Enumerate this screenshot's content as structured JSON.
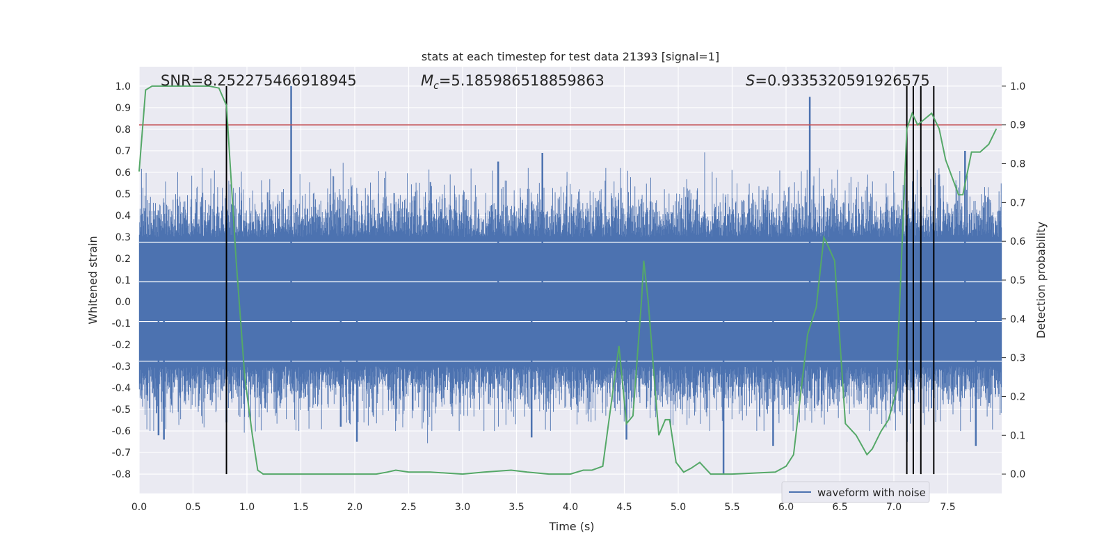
{
  "chart_data": {
    "type": "line",
    "title": "stats at each timestep for test data 21393 [signal=1]",
    "xlabel": "Time (s)",
    "ylabel": "Whitened strain",
    "y2label": "Detection probability",
    "xlim": [
      0.0,
      8.0
    ],
    "ylim": [
      -0.89,
      1.09
    ],
    "y2lim": [
      -0.05,
      1.05
    ],
    "xticks": [
      "0.0",
      "0.5",
      "1.0",
      "1.5",
      "2.0",
      "2.5",
      "3.0",
      "3.5",
      "4.0",
      "4.5",
      "5.0",
      "5.5",
      "6.0",
      "6.5",
      "7.0",
      "7.5"
    ],
    "yticks": [
      "-0.8",
      "-0.7",
      "-0.6",
      "-0.5",
      "-0.4",
      "-0.3",
      "-0.2",
      "-0.1",
      "0.0",
      "0.1",
      "0.2",
      "0.3",
      "0.4",
      "0.5",
      "0.6",
      "0.7",
      "0.8",
      "0.9",
      "1.0"
    ],
    "y2ticks": [
      "0.0",
      "0.1",
      "0.2",
      "0.3",
      "0.4",
      "0.5",
      "0.6",
      "0.7",
      "0.8",
      "0.9",
      "1.0"
    ],
    "grid": true,
    "legend_position": "lower-right",
    "stats": {
      "snr": "SNR=8.252275466918945",
      "mc_symbol": "M",
      "mc_sub": "c",
      "mc_value": "=5.185986518859863",
      "s_symbol": "S",
      "s_value": "=0.9335320591926575"
    },
    "threshold_line": {
      "axis": "y2",
      "value": 0.9,
      "color": "#c44e52"
    },
    "vertical_markers": {
      "x": [
        0.81,
        7.12,
        7.18,
        7.25,
        7.37
      ],
      "y_range": [
        -0.8,
        1.0
      ],
      "color": "#000000"
    },
    "series": [
      {
        "name": "waveform with noise",
        "axis": "y",
        "kind": "noise-waveform",
        "color": "#4c72b0",
        "envelope_amplitude": 0.3,
        "spikes": [
          {
            "x": 1.41,
            "y": 1.0
          },
          {
            "x": 1.41,
            "y": -0.3
          },
          {
            "x": 6.22,
            "y": 0.95
          },
          {
            "x": 3.74,
            "y": 0.69
          },
          {
            "x": 7.66,
            "y": 0.7
          },
          {
            "x": 3.33,
            "y": 0.65
          },
          {
            "x": 5.42,
            "y": -0.8
          },
          {
            "x": 0.81,
            "y": -0.56
          },
          {
            "x": 0.18,
            "y": -0.62
          },
          {
            "x": 0.23,
            "y": -0.64
          },
          {
            "x": 2.02,
            "y": -0.65
          },
          {
            "x": 5.88,
            "y": -0.67
          },
          {
            "x": 7.76,
            "y": -0.67
          },
          {
            "x": 4.52,
            "y": -0.64
          },
          {
            "x": 3.64,
            "y": -0.63
          },
          {
            "x": 1.87,
            "y": -0.58
          }
        ]
      },
      {
        "name": "",
        "axis": "y2",
        "kind": "line",
        "color": "#55a868",
        "x": [
          0.0,
          0.06,
          0.12,
          0.3,
          0.5,
          0.65,
          0.74,
          0.81,
          0.9,
          0.98,
          1.05,
          1.1,
          1.15,
          1.5,
          2.0,
          2.2,
          2.3,
          2.38,
          2.5,
          2.7,
          3.0,
          3.2,
          3.45,
          3.6,
          3.8,
          4.0,
          4.12,
          4.2,
          4.3,
          4.45,
          4.52,
          4.58,
          4.66,
          4.68,
          4.72,
          4.82,
          4.88,
          4.92,
          4.98,
          5.05,
          5.12,
          5.2,
          5.3,
          5.5,
          5.9,
          6.0,
          6.07,
          6.2,
          6.28,
          6.35,
          6.37,
          6.45,
          6.55,
          6.65,
          6.75,
          6.8,
          6.88,
          6.95,
          7.02,
          7.12,
          7.17,
          7.22,
          7.35,
          7.42,
          7.48,
          7.6,
          7.64,
          7.72,
          7.8,
          7.88,
          7.95
        ],
        "y": [
          0.78,
          0.99,
          1.0,
          1.0,
          1.0,
          1.0,
          0.995,
          0.95,
          0.55,
          0.25,
          0.1,
          0.01,
          0.0,
          0.0,
          0.0,
          0.0,
          0.005,
          0.01,
          0.005,
          0.005,
          0.0,
          0.005,
          0.01,
          0.005,
          0.0,
          0.0,
          0.01,
          0.01,
          0.02,
          0.33,
          0.13,
          0.15,
          0.45,
          0.55,
          0.45,
          0.1,
          0.14,
          0.14,
          0.03,
          0.005,
          0.015,
          0.03,
          0.0,
          0.0,
          0.005,
          0.02,
          0.05,
          0.36,
          0.43,
          0.61,
          0.6,
          0.55,
          0.13,
          0.1,
          0.05,
          0.065,
          0.11,
          0.14,
          0.21,
          0.89,
          0.93,
          0.9,
          0.93,
          0.89,
          0.81,
          0.72,
          0.72,
          0.83,
          0.83,
          0.85,
          0.89
        ]
      }
    ]
  }
}
